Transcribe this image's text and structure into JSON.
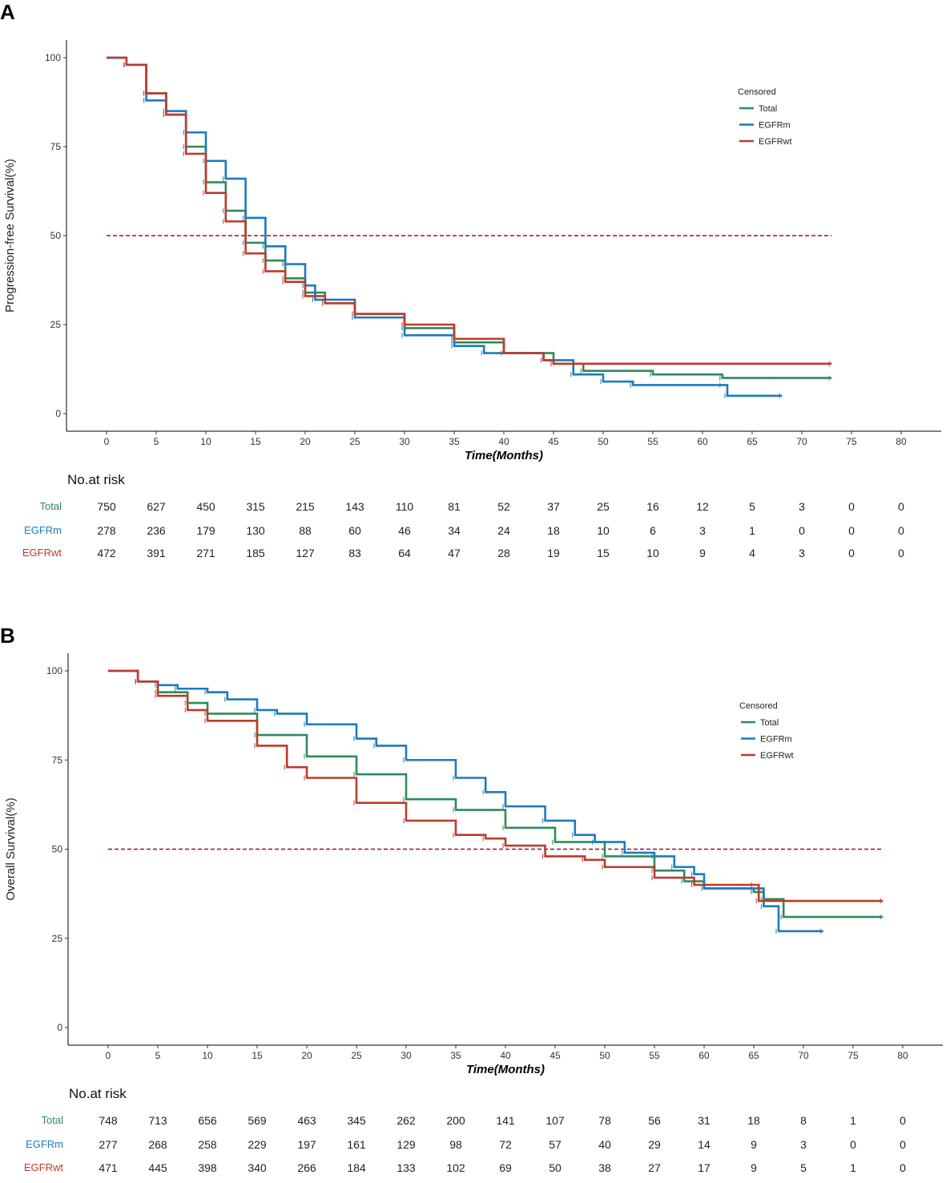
{
  "colors": {
    "Total": "#2e8b57",
    "EGFRm": "#1a7bbf",
    "EGFRwt": "#c0392b",
    "median": "#8b1a1a"
  },
  "chart_data": [
    {
      "panel": "A",
      "type": "line",
      "ylabel": "Progression-free Survival(%)",
      "xlabel": "Time(Months)",
      "xlim": [
        0,
        80
      ],
      "ylim": [
        0,
        100
      ],
      "xticks": [
        0,
        5,
        10,
        15,
        20,
        25,
        30,
        35,
        40,
        45,
        50,
        55,
        60,
        65,
        70,
        75,
        80
      ],
      "yticks": [
        0,
        25,
        50,
        75,
        100
      ],
      "median_line": 50,
      "legend_title": "Censored",
      "legend_position": "top-right",
      "series": [
        {
          "name": "Total",
          "points": [
            [
              0,
              100
            ],
            [
              2,
              98
            ],
            [
              4,
              90
            ],
            [
              6,
              84
            ],
            [
              8,
              75
            ],
            [
              10,
              65
            ],
            [
              12,
              57
            ],
            [
              14,
              48
            ],
            [
              16,
              43
            ],
            [
              18,
              38
            ],
            [
              20,
              34
            ],
            [
              22,
              31
            ],
            [
              25,
              28
            ],
            [
              30,
              24
            ],
            [
              35,
              20
            ],
            [
              40,
              17
            ],
            [
              45,
              14
            ],
            [
              48,
              12
            ],
            [
              55,
              11
            ],
            [
              62,
              10
            ],
            [
              73,
              10
            ]
          ]
        },
        {
          "name": "EGFRm",
          "points": [
            [
              0,
              100
            ],
            [
              2,
              98
            ],
            [
              4,
              88
            ],
            [
              6,
              85
            ],
            [
              8,
              79
            ],
            [
              10,
              71
            ],
            [
              12,
              66
            ],
            [
              14,
              55
            ],
            [
              16,
              47
            ],
            [
              18,
              42
            ],
            [
              20,
              36
            ],
            [
              21,
              32
            ],
            [
              25,
              27
            ],
            [
              30,
              22
            ],
            [
              35,
              19
            ],
            [
              38,
              17
            ],
            [
              44,
              15
            ],
            [
              47,
              11
            ],
            [
              50,
              9
            ],
            [
              53,
              8
            ],
            [
              62,
              8
            ],
            [
              62.5,
              5
            ],
            [
              68,
              5
            ]
          ]
        },
        {
          "name": "EGFRwt",
          "points": [
            [
              0,
              100
            ],
            [
              2,
              98
            ],
            [
              4,
              90
            ],
            [
              6,
              84
            ],
            [
              8,
              73
            ],
            [
              10,
              62
            ],
            [
              12,
              54
            ],
            [
              14,
              45
            ],
            [
              16,
              40
            ],
            [
              18,
              37
            ],
            [
              20,
              33
            ],
            [
              22,
              31
            ],
            [
              25,
              28
            ],
            [
              30,
              25
            ],
            [
              35,
              21
            ],
            [
              40,
              17
            ],
            [
              44,
              15
            ],
            [
              45,
              14
            ],
            [
              73,
              14
            ]
          ]
        }
      ],
      "risk_table": {
        "title": "No.at risk",
        "rows": [
          {
            "name": "Total",
            "values": [
              750,
              627,
              450,
              315,
              215,
              143,
              110,
              81,
              52,
              37,
              25,
              16,
              12,
              5,
              3,
              0,
              0
            ]
          },
          {
            "name": "EGFRm",
            "values": [
              278,
              236,
              179,
              130,
              88,
              60,
              46,
              34,
              24,
              18,
              10,
              6,
              3,
              1,
              0,
              0,
              0
            ]
          },
          {
            "name": "EGFRwt",
            "values": [
              472,
              391,
              271,
              185,
              127,
              83,
              64,
              47,
              28,
              19,
              15,
              10,
              9,
              4,
              3,
              0,
              0
            ]
          }
        ]
      }
    },
    {
      "panel": "B",
      "type": "line",
      "ylabel": "Overall Survival(%)",
      "xlabel": "Time(Months)",
      "xlim": [
        0,
        80
      ],
      "ylim": [
        0,
        100
      ],
      "xticks": [
        0,
        5,
        10,
        15,
        20,
        25,
        30,
        35,
        40,
        45,
        50,
        55,
        60,
        65,
        70,
        75,
        80
      ],
      "yticks": [
        0,
        25,
        50,
        75,
        100
      ],
      "median_line": 50,
      "legend_title": "Censored",
      "legend_position": "top-right",
      "series": [
        {
          "name": "Total",
          "points": [
            [
              0,
              100
            ],
            [
              3,
              97
            ],
            [
              5,
              94
            ],
            [
              8,
              91
            ],
            [
              10,
              88
            ],
            [
              15,
              82
            ],
            [
              20,
              76
            ],
            [
              25,
              71
            ],
            [
              30,
              64
            ],
            [
              35,
              61
            ],
            [
              40,
              56
            ],
            [
              45,
              52
            ],
            [
              50,
              48
            ],
            [
              55,
              44
            ],
            [
              58,
              41
            ],
            [
              60,
              39
            ],
            [
              65,
              38
            ],
            [
              66,
              36
            ],
            [
              68,
              31
            ],
            [
              78,
              31
            ]
          ]
        },
        {
          "name": "EGFRm",
          "points": [
            [
              0,
              100
            ],
            [
              3,
              97
            ],
            [
              5,
              96
            ],
            [
              7,
              95
            ],
            [
              10,
              94
            ],
            [
              12,
              92
            ],
            [
              15,
              89
            ],
            [
              17,
              88
            ],
            [
              20,
              85
            ],
            [
              25,
              81
            ],
            [
              27,
              79
            ],
            [
              30,
              75
            ],
            [
              35,
              70
            ],
            [
              38,
              66
            ],
            [
              40,
              62
            ],
            [
              44,
              58
            ],
            [
              47,
              54
            ],
            [
              49,
              52
            ],
            [
              52,
              49
            ],
            [
              55,
              48
            ],
            [
              57,
              45
            ],
            [
              59,
              43
            ],
            [
              60,
              39
            ],
            [
              65,
              39
            ],
            [
              66,
              34
            ],
            [
              67.5,
              27
            ],
            [
              72,
              27
            ]
          ]
        },
        {
          "name": "EGFRwt",
          "points": [
            [
              0,
              100
            ],
            [
              3,
              97
            ],
            [
              5,
              93
            ],
            [
              8,
              89
            ],
            [
              10,
              86
            ],
            [
              15,
              79
            ],
            [
              18,
              73
            ],
            [
              20,
              70
            ],
            [
              25,
              63
            ],
            [
              30,
              58
            ],
            [
              35,
              54
            ],
            [
              38,
              53
            ],
            [
              40,
              51
            ],
            [
              44,
              48
            ],
            [
              48,
              47
            ],
            [
              50,
              45
            ],
            [
              55,
              42
            ],
            [
              59,
              40
            ],
            [
              65,
              40
            ],
            [
              65.5,
              35.5
            ],
            [
              78,
              35.5
            ]
          ]
        }
      ],
      "risk_table": {
        "title": "No.at risk",
        "rows": [
          {
            "name": "Total",
            "values": [
              748,
              713,
              656,
              569,
              463,
              345,
              262,
              200,
              141,
              107,
              78,
              56,
              31,
              18,
              8,
              1,
              0
            ]
          },
          {
            "name": "EGFRm",
            "values": [
              277,
              268,
              258,
              229,
              197,
              161,
              129,
              98,
              72,
              57,
              40,
              29,
              14,
              9,
              3,
              0,
              0
            ]
          },
          {
            "name": "EGFRwt",
            "values": [
              471,
              445,
              398,
              340,
              266,
              184,
              133,
              102,
              69,
              50,
              38,
              27,
              17,
              9,
              5,
              1,
              0
            ]
          }
        ]
      }
    }
  ]
}
